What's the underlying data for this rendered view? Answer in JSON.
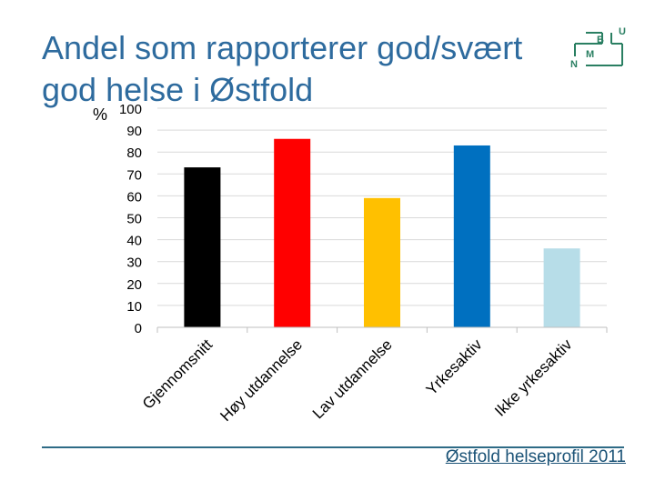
{
  "slide": {
    "title": "Andel som rapporterer god/svært god helse i Østfold",
    "footer": "Østfold helseprofil 2011"
  },
  "logo": {
    "letters": [
      "U",
      "B",
      "N",
      "M"
    ],
    "color": "#2a7f62"
  },
  "chart_data": {
    "type": "bar",
    "title": "",
    "xlabel": "",
    "ylabel": "%",
    "ylim": [
      0,
      100
    ],
    "yticks": [
      0,
      10,
      20,
      30,
      40,
      50,
      60,
      70,
      80,
      90,
      100
    ],
    "grid": true,
    "categories": [
      "Gjennomsnitt",
      "Høy utdannelse",
      "Lav utdannelse",
      "Yrkesaktiv",
      "Ikke yrkesaktiv"
    ],
    "values": [
      73,
      86,
      59,
      83,
      36
    ],
    "colors": [
      "#000000",
      "#ff0000",
      "#ffc000",
      "#0070c0",
      "#b7dde8"
    ]
  }
}
